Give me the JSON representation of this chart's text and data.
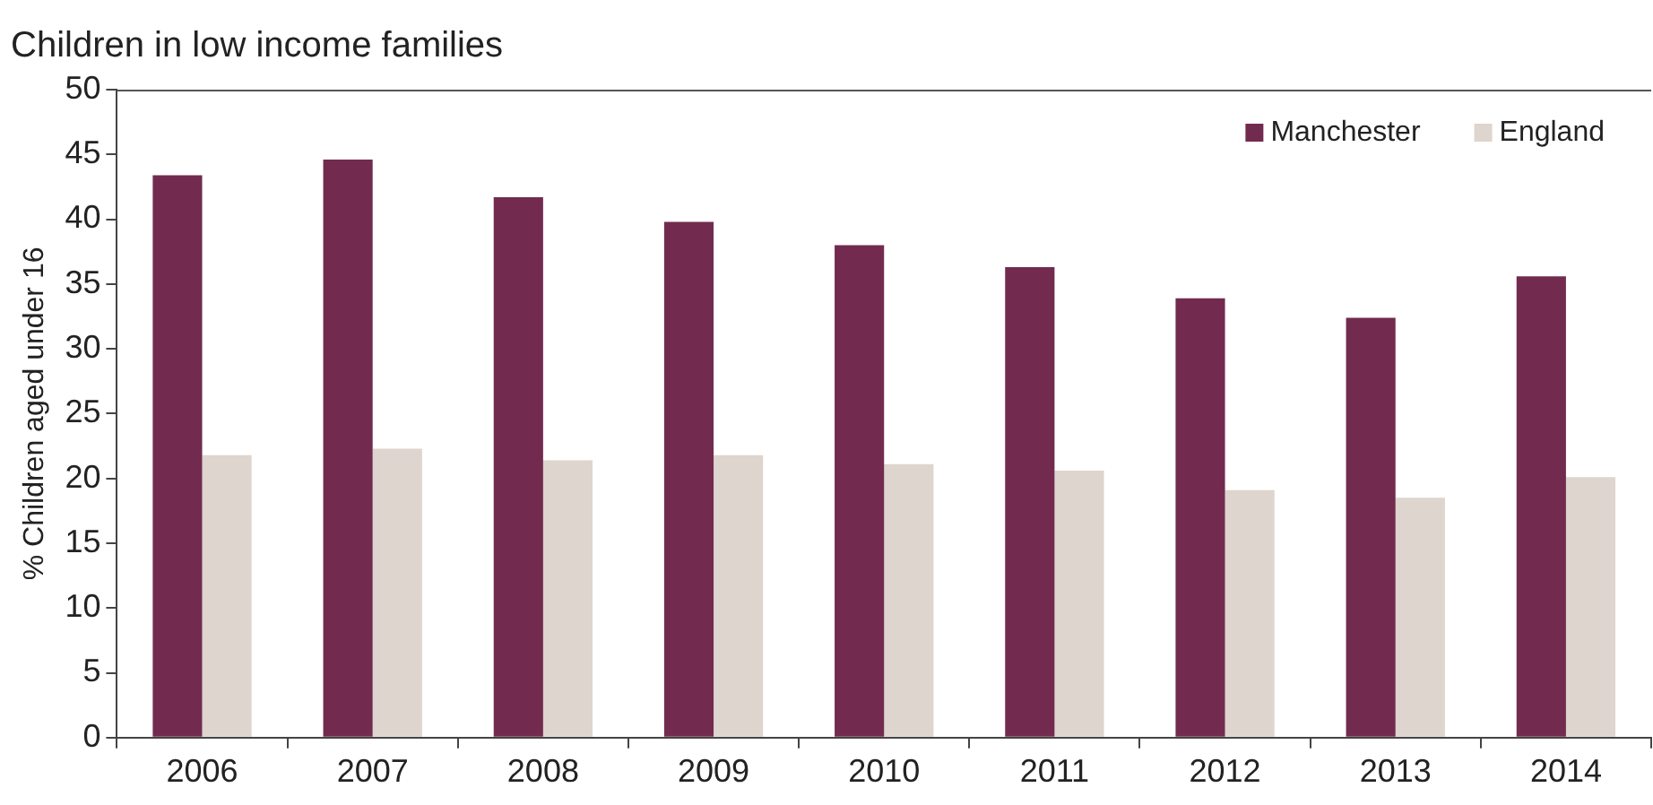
{
  "chart_data": {
    "type": "bar",
    "title": "Children in low income families",
    "ylabel": "% Children aged under 16",
    "categories": [
      "2006",
      "2007",
      "2008",
      "2009",
      "2010",
      "2011",
      "2012",
      "2013",
      "2014"
    ],
    "series": [
      {
        "name": "Manchester",
        "color": "#722b4f",
        "values": [
          43.4,
          44.6,
          41.7,
          39.8,
          38.0,
          36.3,
          33.9,
          32.4,
          35.6
        ]
      },
      {
        "name": "England",
        "color": "#ddd5ce",
        "values": [
          21.8,
          22.3,
          21.4,
          21.8,
          21.1,
          20.6,
          19.1,
          18.5,
          20.1
        ]
      }
    ],
    "ylim": [
      0,
      50
    ],
    "yticks": [
      0,
      5,
      10,
      15,
      20,
      25,
      30,
      35,
      40,
      45,
      50
    ],
    "grid": false,
    "legend": "top right"
  }
}
